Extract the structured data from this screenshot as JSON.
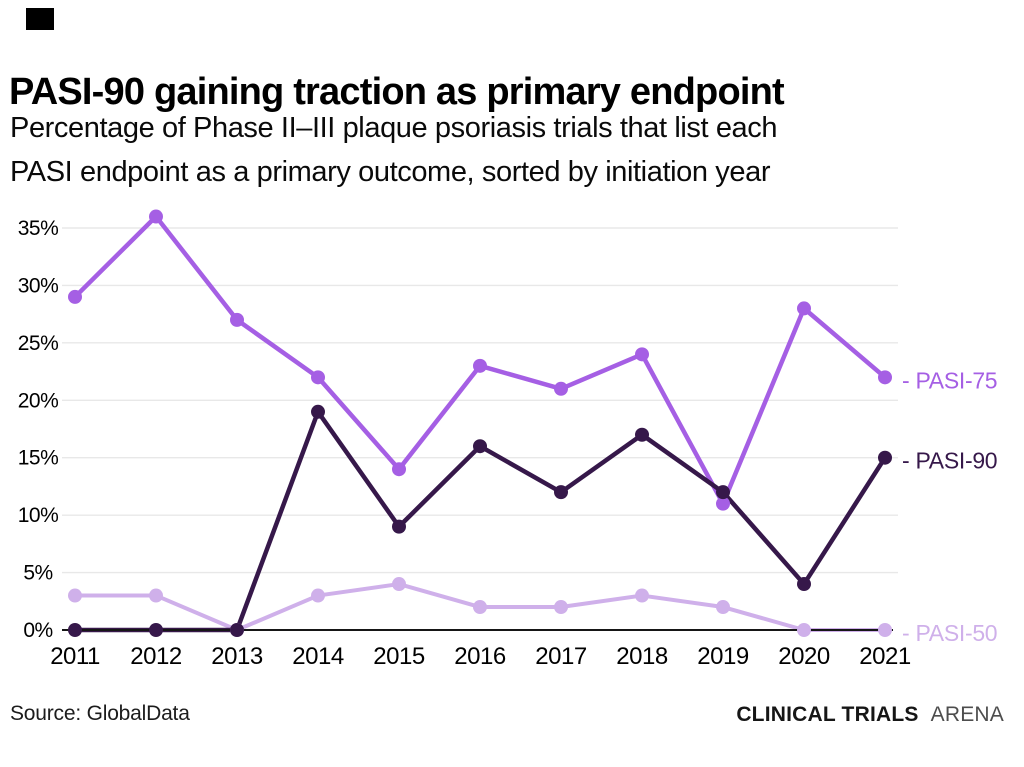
{
  "header": {
    "logo": "black-rectangle-logo"
  },
  "chart_data": {
    "type": "line",
    "title": "PASI-90 gaining traction as primary endpoint",
    "subtitle_line1": "Percentage of Phase II–III plaque psoriasis trials that list each",
    "subtitle_line2": "PASI endpoint as a primary outcome, sorted by initiation year",
    "categories": [
      "2011",
      "2012",
      "2013",
      "2014",
      "2015",
      "2016",
      "2017",
      "2018",
      "2019",
      "2020",
      "2021"
    ],
    "series": [
      {
        "name": "PASI-75",
        "line_label": "- PASI-75",
        "color": "#a55fe4",
        "values": [
          29,
          36,
          27,
          22,
          14,
          23,
          21,
          24,
          11,
          28,
          22
        ]
      },
      {
        "name": "PASI-90",
        "line_label": "- PASI-90",
        "color": "#36184a",
        "values": [
          0,
          0,
          0,
          19,
          9,
          16,
          12,
          17,
          12,
          4,
          15
        ]
      },
      {
        "name": "PASI-50",
        "line_label": "- PASI-50",
        "color": "#cfb0ea",
        "values": [
          3,
          3,
          0,
          3,
          4,
          2,
          2,
          3,
          2,
          0,
          0
        ]
      }
    ],
    "yticks": [
      0,
      5,
      10,
      15,
      20,
      25,
      30,
      35
    ],
    "ytick_labels": [
      "0%",
      "5%",
      "10%",
      "15%",
      "20%",
      "25%",
      "30%",
      "35%"
    ],
    "ylim": [
      0,
      36
    ],
    "xlabel": "",
    "ylabel": "",
    "grid": "horizontal-only",
    "legend_position": "right-of-line-ends",
    "colors": {
      "grid": "#e8e8e8",
      "axis": "#161616",
      "tick_text": "#000000"
    }
  },
  "footer": {
    "source": "Source: GlobalData",
    "brand_bold": "CLINICAL TRIALS",
    "brand_light": "ARENA"
  }
}
